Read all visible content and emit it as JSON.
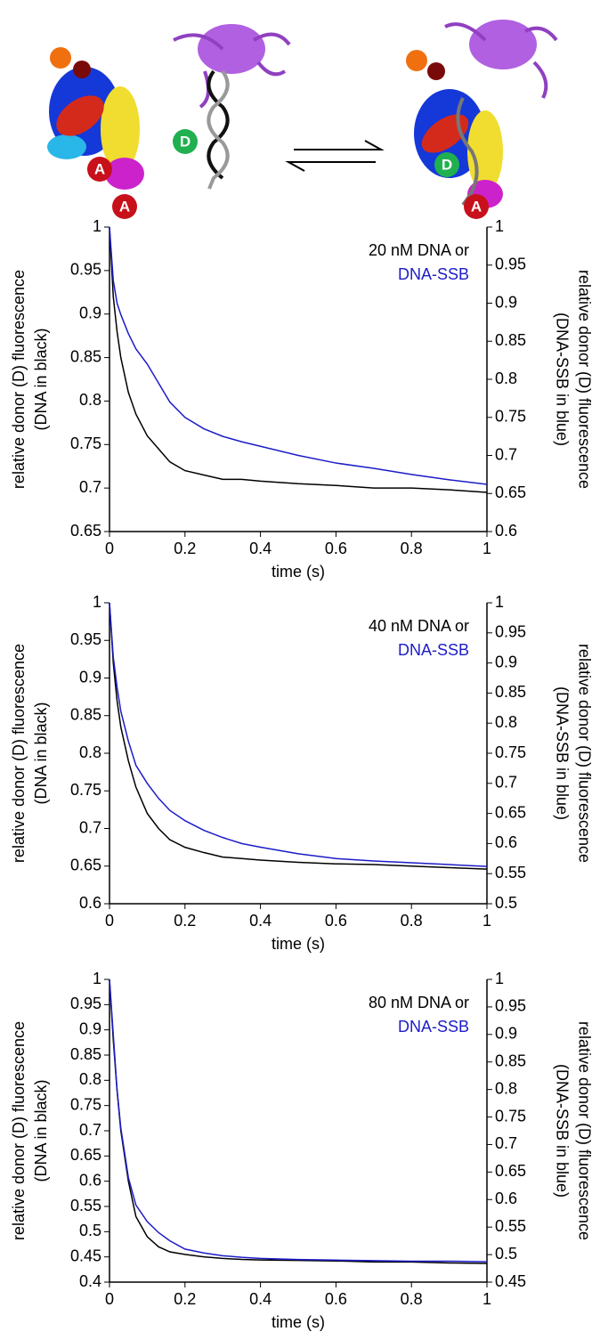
{
  "illustration": {
    "labels": [
      "A",
      "A",
      "D",
      "D",
      "A"
    ]
  },
  "chart_data": [
    {
      "type": "line",
      "annotation": "20 nM DNA or",
      "xlabel": "time (s)",
      "ylabel": [
        "relative donor (D) fluorescence",
        "(DNA in black)"
      ],
      "y2label": [
        "relative donor (D) fluorescence",
        "(DNA-SSB in blue)"
      ],
      "x": [
        0,
        0.01,
        0.02,
        0.03,
        0.05,
        0.07,
        0.1,
        0.13,
        0.16,
        0.2,
        0.25,
        0.3,
        0.35,
        0.4,
        0.5,
        0.6,
        0.7,
        0.8,
        0.9,
        1
      ],
      "series": [
        {
          "color": "#000000",
          "axis": "y",
          "values": [
            1,
            0.92,
            0.88,
            0.85,
            0.81,
            0.785,
            0.76,
            0.745,
            0.73,
            0.72,
            0.715,
            0.71,
            0.71,
            0.708,
            0.705,
            0.703,
            0.7,
            0.7,
            0.698,
            0.695
          ]
        },
        {
          "name": "DNA-SSB",
          "color": "#1c1cc8",
          "axis": "y2",
          "values": [
            1,
            0.93,
            0.9,
            0.885,
            0.86,
            0.84,
            0.82,
            0.795,
            0.77,
            0.75,
            0.735,
            0.725,
            0.718,
            0.712,
            0.7,
            0.69,
            0.683,
            0.675,
            0.668,
            0.662
          ]
        }
      ],
      "xlim": [
        0,
        1
      ],
      "xticks": [
        0,
        0.2,
        0.4,
        0.6,
        0.8,
        1
      ],
      "ylim": [
        0.65,
        1
      ],
      "yticks": [
        0.65,
        0.7,
        0.75,
        0.8,
        0.85,
        0.9,
        0.95,
        1
      ],
      "y2lim": [
        0.6,
        1
      ],
      "y2ticks": [
        0.6,
        0.65,
        0.7,
        0.75,
        0.8,
        0.85,
        0.9,
        0.95,
        1
      ]
    },
    {
      "type": "line",
      "annotation": "40 nM DNA or",
      "xlabel": "time (s)",
      "ylabel": [
        "relative donor (D) fluorescence",
        "(DNA in black)"
      ],
      "y2label": [
        "relative donor (D) fluorescence",
        "(DNA-SSB in blue)"
      ],
      "x": [
        0,
        0.01,
        0.02,
        0.03,
        0.05,
        0.07,
        0.1,
        0.13,
        0.16,
        0.2,
        0.25,
        0.3,
        0.35,
        0.4,
        0.5,
        0.6,
        0.7,
        0.8,
        0.9,
        1
      ],
      "series": [
        {
          "color": "#000000",
          "axis": "y",
          "values": [
            1,
            0.92,
            0.87,
            0.835,
            0.79,
            0.755,
            0.72,
            0.7,
            0.685,
            0.675,
            0.668,
            0.662,
            0.66,
            0.658,
            0.655,
            0.653,
            0.652,
            0.65,
            0.648,
            0.646
          ]
        },
        {
          "name": "DNA-SSB",
          "color": "#1c1cc8",
          "axis": "y2",
          "values": [
            1,
            0.91,
            0.86,
            0.82,
            0.77,
            0.73,
            0.7,
            0.675,
            0.655,
            0.638,
            0.622,
            0.61,
            0.6,
            0.594,
            0.583,
            0.575,
            0.571,
            0.568,
            0.565,
            0.562
          ]
        }
      ],
      "xlim": [
        0,
        1
      ],
      "xticks": [
        0,
        0.2,
        0.4,
        0.6,
        0.8,
        1
      ],
      "ylim": [
        0.6,
        1
      ],
      "yticks": [
        0.6,
        0.65,
        0.7,
        0.75,
        0.8,
        0.85,
        0.9,
        0.95,
        1
      ],
      "y2lim": [
        0.5,
        1
      ],
      "y2ticks": [
        0.5,
        0.55,
        0.6,
        0.65,
        0.7,
        0.75,
        0.8,
        0.85,
        0.9,
        0.95,
        1
      ]
    },
    {
      "type": "line",
      "annotation": "80 nM DNA or",
      "xlabel": "time (s)",
      "ylabel": [
        "relative donor (D) fluorescence",
        "(DNA in black)"
      ],
      "y2label": [
        "relative donor (D) fluorescence",
        "(DNA-SSB in blue)"
      ],
      "x": [
        0,
        0.01,
        0.02,
        0.03,
        0.05,
        0.07,
        0.1,
        0.13,
        0.16,
        0.2,
        0.25,
        0.3,
        0.35,
        0.4,
        0.5,
        0.6,
        0.7,
        0.8,
        0.9,
        1
      ],
      "series": [
        {
          "color": "#000000",
          "axis": "y",
          "values": [
            1,
            0.88,
            0.78,
            0.7,
            0.6,
            0.53,
            0.49,
            0.47,
            0.46,
            0.455,
            0.45,
            0.447,
            0.445,
            0.444,
            0.443,
            0.442,
            0.44,
            0.44,
            0.438,
            0.437
          ]
        },
        {
          "name": "DNA-SSB",
          "color": "#1c1cc8",
          "axis": "y2",
          "values": [
            1,
            0.9,
            0.8,
            0.73,
            0.64,
            0.59,
            0.56,
            0.54,
            0.525,
            0.51,
            0.503,
            0.498,
            0.495,
            0.493,
            0.491,
            0.49,
            0.489,
            0.488,
            0.488,
            0.487
          ]
        }
      ],
      "xlim": [
        0,
        1
      ],
      "xticks": [
        0,
        0.2,
        0.4,
        0.6,
        0.8,
        1
      ],
      "ylim": [
        0.4,
        1
      ],
      "yticks": [
        0.4,
        0.45,
        0.5,
        0.55,
        0.6,
        0.65,
        0.7,
        0.75,
        0.8,
        0.85,
        0.9,
        0.95,
        1
      ],
      "y2lim": [
        0.45,
        1
      ],
      "y2ticks": [
        0.45,
        0.5,
        0.55,
        0.6,
        0.65,
        0.7,
        0.75,
        0.8,
        0.85,
        0.9,
        0.95,
        1
      ]
    }
  ]
}
